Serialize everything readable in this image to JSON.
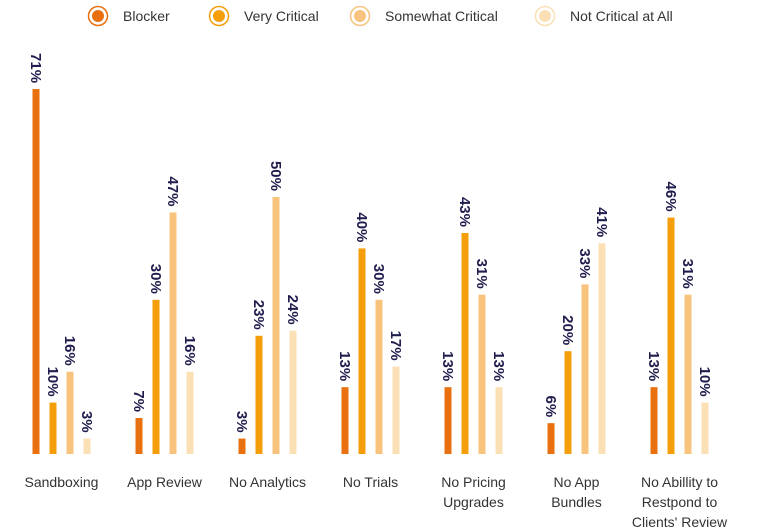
{
  "chart_data": {
    "type": "bar",
    "title": "",
    "xlabel": "",
    "ylabel": "",
    "ylim": [
      0,
      75
    ],
    "grid": false,
    "legend_position": "top",
    "value_suffix": "%",
    "categories": [
      [
        "Sandboxing"
      ],
      [
        "App Review"
      ],
      [
        "No Analytics"
      ],
      [
        "No Trials"
      ],
      [
        "No Pricing",
        "Upgrades"
      ],
      [
        "No App",
        "Bundles"
      ],
      [
        "No Abillity to",
        "Restpond to",
        "Clients' Review"
      ]
    ],
    "series": [
      {
        "name": "Blocker",
        "color": "#e8700f",
        "values": [
          71,
          7,
          3,
          13,
          13,
          6,
          13
        ]
      },
      {
        "name": "Very Critical",
        "color": "#f59e0b",
        "values": [
          10,
          30,
          23,
          40,
          43,
          20,
          46
        ]
      },
      {
        "name": "Somewhat Critical",
        "color": "#f8c37d",
        "values": [
          16,
          47,
          50,
          30,
          31,
          33,
          31
        ]
      },
      {
        "name": "Not Critical at All",
        "color": "#fbe0b5",
        "values": [
          3,
          16,
          24,
          17,
          13,
          41,
          10
        ]
      }
    ]
  }
}
